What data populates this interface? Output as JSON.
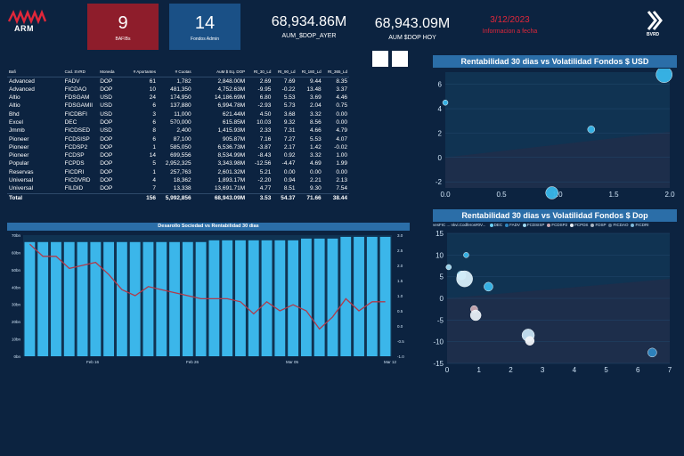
{
  "header": {
    "brand": "ARM",
    "kpi_bafibs": {
      "value": "9",
      "label": "BAFIBs"
    },
    "kpi_fondos": {
      "value": "14",
      "label": "Fondos Admin"
    },
    "aum_ayer": {
      "value": "68,934.86M",
      "label": "AUM_$DOP_AYER"
    },
    "aum_hoy": {
      "value": "68,943.09M",
      "label": "AUM $DOP HOY"
    },
    "date": {
      "value": "3/12/2023",
      "label": "Informacion a fecha"
    },
    "exchange": "BVRD"
  },
  "table": {
    "columns": [
      "Bafi",
      "Cod. SVRD",
      "Moneda",
      "# Aportantes",
      "# Cuotas",
      "AuM $ Eq. DOP",
      "Rt_30_Ld",
      "Rt_90_Ld",
      "Rt_180_Ld",
      "Rt_365_Ld"
    ],
    "rows": [
      [
        "Advanced",
        "FADV",
        "DOP",
        "61",
        "1,782",
        "2,848.00M",
        "2.69",
        "7.69",
        "9.44",
        "8.35"
      ],
      [
        "Advanced",
        "FICDAO",
        "DOP",
        "10",
        "481,350",
        "4,752.63M",
        "-9.95",
        "-0.22",
        "13.48",
        "3.37"
      ],
      [
        "Altio",
        "FDSGAM",
        "USD",
        "24",
        "174,950",
        "14,186.69M",
        "6.80",
        "5.53",
        "3.69",
        "4.46"
      ],
      [
        "Altio",
        "FDSGAMII",
        "USD",
        "6",
        "137,880",
        "6,994.78M",
        "-2.93",
        "5.73",
        "2.04",
        "0.75"
      ],
      [
        "Bhd",
        "FICDBFI",
        "USD",
        "3",
        "11,000",
        "621.44M",
        "4.50",
        "3.68",
        "3.32",
        "0.00"
      ],
      [
        "Excel",
        "DEC",
        "DOP",
        "6",
        "570,000",
        "615.85M",
        "10.03",
        "9.32",
        "8.56",
        "0.00"
      ],
      [
        "Jmmb",
        "FICDSED",
        "USD",
        "8",
        "2,400",
        "1,415.93M",
        "2.33",
        "7.31",
        "4.66",
        "4.79"
      ],
      [
        "Pioneer",
        "FCDSISP",
        "DOP",
        "6",
        "87,100",
        "905.87M",
        "7.16",
        "7.27",
        "5.53",
        "4.07"
      ],
      [
        "Pioneer",
        "FCDSP2",
        "DOP",
        "1",
        "585,050",
        "6,536.73M",
        "-3.87",
        "2.17",
        "1.42",
        "-0.02"
      ],
      [
        "Pioneer",
        "FCDSP",
        "DOP",
        "14",
        "699,556",
        "8,534.99M",
        "-8.43",
        "0.92",
        "3.32",
        "1.00"
      ],
      [
        "Popular",
        "FCPDS",
        "DOP",
        "5",
        "2,952,325",
        "3,343.98M",
        "-12.56",
        "-4.47",
        "4.69",
        "1.99"
      ],
      [
        "Reservas",
        "FICDRI",
        "DOP",
        "1",
        "257,763",
        "2,601.32M",
        "5.21",
        "0.00",
        "0.00",
        "0.00"
      ],
      [
        "Universal",
        "FICDVRD",
        "DOP",
        "4",
        "18,362",
        "1,893.17M",
        "-2.20",
        "0.94",
        "2.21",
        "2.13"
      ],
      [
        "Universal",
        "FILDID",
        "DOP",
        "7",
        "13,338",
        "13,691.71M",
        "4.77",
        "8.51",
        "9.30",
        "7.54"
      ]
    ],
    "total": [
      "Total",
      "",
      "",
      "156",
      "5,992,856",
      "68,943.09M",
      "3.53",
      "54.37",
      "71.66",
      "38.44"
    ]
  },
  "chart_data": [
    {
      "type": "bar",
      "title": "Desarollo Sociedad vs Rentabilidad 30 dias",
      "y_ticks": [
        "70bn",
        "60bn",
        "50bn",
        "40bn",
        "30bn",
        "20bn",
        "10bn",
        "0bn"
      ],
      "y2_ticks": [
        "3.0",
        "2.5",
        "2.0",
        "1.5",
        "1.0",
        "0.5",
        "0.0",
        "-0.5",
        "-1.0"
      ],
      "x_ticks": [
        "Feb 16",
        "Feb 26",
        "Mar 05",
        "Mar 12"
      ],
      "ylim": [
        0,
        70
      ],
      "y2lim": [
        -1.0,
        3.0
      ],
      "bar_values": [
        66,
        66,
        66,
        66,
        66,
        66,
        66,
        66,
        66,
        66,
        66,
        66,
        66,
        66,
        67,
        67,
        67,
        67,
        67,
        67,
        67,
        68,
        68,
        68,
        69,
        69,
        69,
        69
      ],
      "line_values": [
        2.7,
        2.3,
        2.3,
        1.9,
        2.0,
        2.1,
        1.7,
        1.2,
        1.0,
        1.3,
        1.2,
        1.1,
        1.0,
        0.9,
        0.9,
        0.9,
        0.8,
        0.4,
        0.8,
        0.5,
        0.7,
        0.5,
        -0.1,
        0.3,
        0.9,
        0.5,
        0.8,
        0.8
      ]
    },
    {
      "type": "scatter",
      "title": "Rentabilidad 30 dias vs Volatilidad Fondos $ USD",
      "xlim": [
        0,
        2.0
      ],
      "ylim": [
        -2.5,
        7
      ],
      "x_ticks": [
        "0.0",
        "0.5",
        "1.0",
        "1.5",
        "2.0"
      ],
      "y_ticks": [
        "6",
        "4",
        "2",
        "0",
        "-2"
      ],
      "points": [
        {
          "x": 0.0,
          "y": 4.5,
          "size": 3,
          "color": "#39b7ea"
        },
        {
          "x": 0.95,
          "y": -2.9,
          "size": 7,
          "color": "#39b7ea"
        },
        {
          "x": 1.3,
          "y": 2.3,
          "size": 4,
          "color": "#39b7ea"
        },
        {
          "x": 1.95,
          "y": 6.8,
          "size": 9,
          "color": "#39b7ea"
        }
      ]
    },
    {
      "type": "scatter",
      "title": "Rentabilidad 30 dias vs Volatilidad Fondos $ Dop",
      "legend_title": "vesFIC ... nkvi.Codferos#0V...",
      "legend": [
        {
          "name": "DEC",
          "color": "#6dd0f5"
        },
        {
          "name": "FADV",
          "color": "#2e86c1"
        },
        {
          "name": "FCDSISP",
          "color": "#9fd9f2"
        },
        {
          "name": "FCDSP2",
          "color": "#c9a7b1"
        },
        {
          "name": "FCPDS",
          "color": "#e7eef5"
        },
        {
          "name": "FDSP",
          "color": "#a8b4c2"
        },
        {
          "name": "FICDAO",
          "color": "#5e7790"
        },
        {
          "name": "FICDRI",
          "color": "#7fb8d8"
        }
      ],
      "xlim": [
        0,
        7
      ],
      "ylim": [
        -15,
        15
      ],
      "x_ticks": [
        "0",
        "1",
        "2",
        "3",
        "4",
        "5",
        "6",
        "7"
      ],
      "y_ticks": [
        "15",
        "10",
        "5",
        "0",
        "-5",
        "-10",
        "-15"
      ],
      "points": [
        {
          "x": 0.05,
          "y": 7.2,
          "size": 3,
          "color": "#9fd9f2"
        },
        {
          "x": 0.6,
          "y": 10.0,
          "size": 3,
          "color": "#39b7ea"
        },
        {
          "x": 0.45,
          "y": 5.3,
          "size": 5,
          "color": "#6dd0f5"
        },
        {
          "x": 0.55,
          "y": 4.5,
          "size": 9,
          "color": "#d7eef9"
        },
        {
          "x": 1.3,
          "y": 2.7,
          "size": 5,
          "color": "#39b7ea"
        },
        {
          "x": 0.85,
          "y": -2.5,
          "size": 4,
          "color": "#c9a7b1"
        },
        {
          "x": 0.9,
          "y": -3.9,
          "size": 6,
          "color": "#e7eef5"
        },
        {
          "x": 2.55,
          "y": -8.5,
          "size": 7,
          "color": "#c6e2f3"
        },
        {
          "x": 2.6,
          "y": -9.8,
          "size": 5,
          "color": "#f0f4f8"
        },
        {
          "x": 6.45,
          "y": -12.5,
          "size": 5,
          "color": "#2e86c1"
        }
      ]
    }
  ]
}
